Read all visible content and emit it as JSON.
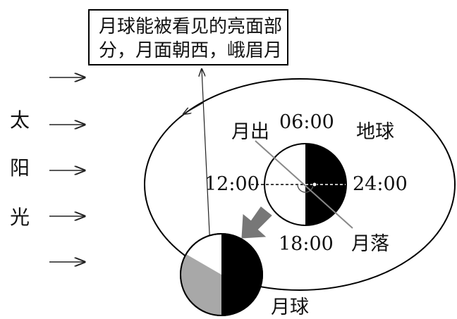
{
  "callout": {
    "line1": "月球能被看见的亮面部",
    "line2": "分，月面朝西，峨眉月"
  },
  "sunlight": {
    "char1": "太",
    "char2": "阳",
    "char3": "光"
  },
  "earth": {
    "label": "地球",
    "time_top": "06:00",
    "time_left": "12:00",
    "time_right": "24:00",
    "time_bottom": "18:00",
    "moonrise": "月出",
    "moonset": "月落"
  },
  "moon": {
    "label": "月球"
  },
  "colors": {
    "dark_side": "#000000",
    "earthshine_gray": "#a8a8a8",
    "lit_side": "#ffffff",
    "stroke": "#000000"
  }
}
